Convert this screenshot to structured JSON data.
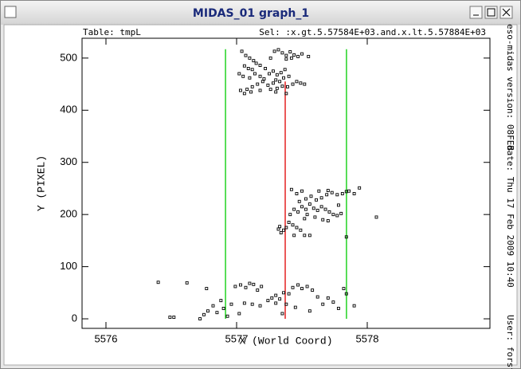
{
  "window": {
    "title": "MIDAS_01 graph_1"
  },
  "chart_data": {
    "type": "scatter",
    "header_left": "Table: tmpL",
    "header_right": "Sel: :x.gt.5.57584E+03.and.x.lt.5.57884E+03",
    "side_texts": [
      "eso-midas version: 08FEB",
      "date: Thu 17 Feb 2009 10:40",
      "User: forst"
    ],
    "x_label": "X (World Coord)",
    "y_label": "Y (PIXEL)",
    "xlim": [
      5575.817,
      5578.939
    ],
    "ylim": [
      -18.3,
      538
    ],
    "xticks": [
      5576,
      5577,
      5578
    ],
    "yticks": [
      0,
      100,
      200,
      300,
      400,
      500
    ],
    "color": "#000000",
    "lines": [
      {
        "x": 5576.915,
        "y": [
          0,
          517
        ],
        "color": "#00cc00"
      },
      {
        "x": 5577.372,
        "y": [
          0,
          455
        ],
        "color": "#e00000"
      },
      {
        "x": 5577.841,
        "y": [
          0,
          517
        ],
        "color": "#00cc00"
      }
    ],
    "x": [
      5577.04,
      5577.07,
      5577.1,
      5577.13,
      5577.06,
      5577.09,
      5577.12,
      5577.15,
      5577.18,
      5577.22,
      5577.26,
      5577.29,
      5577.32,
      5577.35,
      5577.38,
      5577.41,
      5577.44,
      5577.47,
      5577.5,
      5577.55,
      5577.38,
      5577.42,
      5577.02,
      5577.05,
      5577.1,
      5577.14,
      5577.18,
      5577.21,
      5577.25,
      5577.28,
      5577.31,
      5577.34,
      5577.37,
      5577.3,
      5577.33,
      5577.36,
      5577.4,
      5577.28,
      5577.24,
      5577.2,
      5577.16,
      5577.12,
      5577.08,
      5577.03,
      5577.06,
      5577.11,
      5577.18,
      5577.26,
      5577.31,
      5577.35,
      5577.39,
      5577.43,
      5577.46,
      5577.49,
      5577.52,
      5577.38,
      5577.3,
      5577.32,
      5577.34,
      5577.36,
      5577.33,
      5577.38,
      5577.4,
      5577.43,
      5577.46,
      5577.49,
      5577.44,
      5577.52,
      5577.56,
      5577.41,
      5577.44,
      5577.47,
      5577.5,
      5577.53,
      5577.56,
      5577.59,
      5577.62,
      5577.65,
      5577.68,
      5577.71,
      5577.74,
      5577.77,
      5577.8,
      5577.6,
      5577.66,
      5577.7,
      5577.52,
      5577.48,
      5577.53,
      5577.57,
      5577.61,
      5577.65,
      5577.69,
      5577.73,
      5577.77,
      5577.81,
      5577.86,
      5577.9,
      5577.84,
      5577.42,
      5577.46,
      5577.5,
      5577.63,
      5577.7,
      5577.94,
      5578.07,
      5577.84,
      5577.78,
      5577.54,
      5576.4,
      5576.62,
      5576.49,
      5576.52,
      5576.77,
      5576.78,
      5576.75,
      5576.85,
      5576.82,
      5576.88,
      5576.9,
      5576.96,
      5576.99,
      5577.03,
      5577.07,
      5577.1,
      5577.13,
      5577.16,
      5577.19,
      5577.06,
      5577.12,
      5577.18,
      5577.24,
      5577.27,
      5577.3,
      5577.33,
      5577.36,
      5577.4,
      5577.43,
      5577.47,
      5577.5,
      5577.54,
      5577.58,
      5577.62,
      5577.66,
      5577.7,
      5577.74,
      5577.78,
      5577.82,
      5577.84,
      5577.9,
      5577.35,
      5577.3,
      5577.02,
      5576.93,
      5577.45,
      5577.56,
      5577.38,
      5576.72
    ],
    "values": [
      513,
      505,
      500,
      495,
      485,
      480,
      478,
      490,
      486,
      480,
      500,
      513,
      516,
      510,
      505,
      512,
      506,
      503,
      508,
      503,
      498,
      500,
      470,
      465,
      462,
      470,
      465,
      460,
      470,
      475,
      468,
      472,
      478,
      458,
      455,
      462,
      465,
      452,
      448,
      455,
      450,
      445,
      440,
      438,
      432,
      435,
      438,
      440,
      442,
      446,
      445,
      450,
      455,
      452,
      450,
      432,
      435,
      172,
      165,
      170,
      177,
      175,
      185,
      180,
      175,
      170,
      160,
      160,
      160,
      200,
      210,
      205,
      215,
      210,
      220,
      212,
      208,
      215,
      210,
      205,
      200,
      198,
      202,
      195,
      190,
      188,
      192,
      225,
      230,
      235,
      228,
      232,
      238,
      242,
      238,
      240,
      245,
      240,
      244,
      248,
      240,
      245,
      245,
      246,
      251,
      195,
      157,
      218,
      200,
      70,
      69,
      3,
      3,
      58,
      15,
      8,
      12,
      25,
      35,
      20,
      28,
      62,
      65,
      60,
      68,
      66,
      55,
      62,
      30,
      28,
      25,
      35,
      40,
      45,
      38,
      50,
      48,
      60,
      65,
      58,
      62,
      55,
      42,
      28,
      40,
      32,
      20,
      58,
      48,
      25,
      10,
      30,
      10,
      5,
      22,
      15,
      28,
      0
    ]
  }
}
